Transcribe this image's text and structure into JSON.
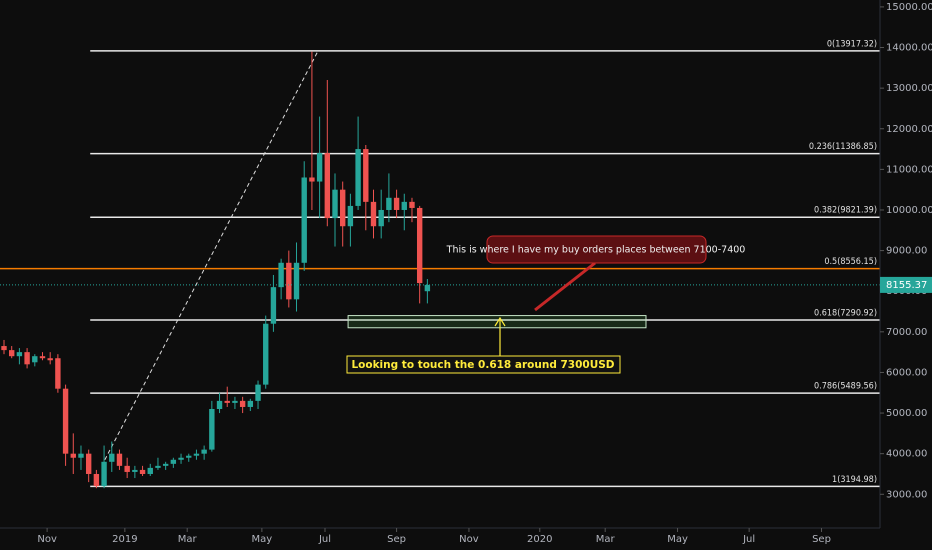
{
  "chart_data": {
    "type": "candlestick",
    "up_color": "#26a69a",
    "down_color": "#ef5350",
    "x": [
      0,
      1,
      2,
      3,
      4,
      5,
      6,
      7,
      8,
      9,
      10,
      11,
      12,
      13,
      14,
      15,
      16,
      17,
      18,
      19,
      20,
      21,
      22,
      23,
      24,
      25,
      26,
      27,
      28,
      29,
      30,
      31,
      32,
      33,
      34,
      35,
      36,
      37,
      38,
      39,
      40,
      41,
      42,
      43,
      44,
      45,
      46,
      47,
      48,
      49,
      50,
      51,
      52,
      53,
      54,
      55
    ],
    "open": [
      6650,
      6550,
      6400,
      6500,
      6250,
      6400,
      6350,
      6350,
      5600,
      4000,
      3900,
      4000,
      3500,
      3200,
      3800,
      4000,
      3700,
      3550,
      3600,
      3500,
      3650,
      3700,
      3750,
      3850,
      3900,
      3950,
      4000,
      4100,
      5100,
      5300,
      5250,
      5300,
      5150,
      5300,
      5700,
      7200,
      8100,
      8700,
      7800,
      8700,
      10800,
      10700,
      11400,
      9800,
      10500,
      9600,
      10100,
      11500,
      10200,
      9600,
      10000,
      10300,
      10000,
      10200,
      10050,
      8000
    ],
    "high": [
      6800,
      6650,
      6600,
      6600,
      6450,
      6500,
      6500,
      6450,
      5700,
      4500,
      4200,
      4100,
      3600,
      4200,
      4300,
      4100,
      3900,
      3700,
      3700,
      3750,
      3900,
      3800,
      3900,
      4000,
      4000,
      4100,
      4200,
      5300,
      5500,
      5650,
      5400,
      5400,
      5350,
      5800,
      7400,
      8400,
      8800,
      9000,
      9200,
      11200,
      13900,
      12300,
      13200,
      10900,
      10700,
      10400,
      12300,
      11600,
      10500,
      10500,
      10900,
      10500,
      10400,
      10300,
      10100,
      8300
    ],
    "low": [
      6450,
      6350,
      6200,
      6100,
      6150,
      6300,
      6200,
      5500,
      3700,
      3500,
      3600,
      3300,
      3150,
      3150,
      3550,
      3600,
      3400,
      3400,
      3450,
      3450,
      3600,
      3600,
      3650,
      3750,
      3800,
      3850,
      3850,
      4050,
      5000,
      5150,
      5100,
      5000,
      5050,
      5100,
      5600,
      7000,
      7800,
      7600,
      7500,
      8500,
      10000,
      9800,
      9600,
      9100,
      9100,
      9100,
      10000,
      9500,
      9300,
      9300,
      9700,
      9800,
      9500,
      9700,
      7700,
      7700
    ],
    "close": [
      6550,
      6400,
      6500,
      6200,
      6400,
      6350,
      6300,
      5600,
      4000,
      3900,
      4000,
      3500,
      3200,
      3800,
      4000,
      3700,
      3550,
      3600,
      3500,
      3650,
      3700,
      3750,
      3850,
      3900,
      3950,
      4000,
      4100,
      5100,
      5300,
      5250,
      5300,
      5150,
      5300,
      5700,
      7200,
      8100,
      8700,
      7800,
      8700,
      10800,
      10700,
      11400,
      9800,
      10500,
      9600,
      10100,
      11500,
      10200,
      9600,
      10000,
      10300,
      10000,
      10200,
      10050,
      8200,
      8155.37
    ],
    "xlim": [
      -0.52,
      113.8
    ],
    "xticks": [
      {
        "value": 5.6,
        "label": "Nov"
      },
      {
        "value": 15.7,
        "label": "2019"
      },
      {
        "value": 23.8,
        "label": "Mar"
      },
      {
        "value": 33.5,
        "label": "May"
      },
      {
        "value": 41.7,
        "label": "Jul"
      },
      {
        "value": 51.0,
        "label": "Sep"
      },
      {
        "value": 60.4,
        "label": "Nov"
      },
      {
        "value": 69.6,
        "label": "2020"
      },
      {
        "value": 78.1,
        "label": "Mar"
      },
      {
        "value": 87.5,
        "label": "May"
      },
      {
        "value": 96.8,
        "label": "Jul"
      },
      {
        "value": 106.2,
        "label": "Sep"
      }
    ],
    "ylim": [
      2170,
      15170
    ],
    "yticks": [
      {
        "value": 3000,
        "label": "3000.00"
      },
      {
        "value": 4000,
        "label": "4000.00"
      },
      {
        "value": 5000,
        "label": "5000.00"
      },
      {
        "value": 6000,
        "label": "6000.00"
      },
      {
        "value": 7000,
        "label": "7000.00"
      },
      {
        "value": 8000,
        "label": "8000.00"
      },
      {
        "value": 9000,
        "label": "9000.00"
      },
      {
        "value": 10000,
        "label": "10000.00"
      },
      {
        "value": 11000,
        "label": "11000.00"
      },
      {
        "value": 12000,
        "label": "12000.00"
      },
      {
        "value": 13000,
        "label": "13000.00"
      },
      {
        "value": 14000,
        "label": "14000.00"
      },
      {
        "value": 15000,
        "label": "15000.00"
      }
    ],
    "fib_levels": [
      {
        "label": "0(13917.32)",
        "value": 13917.32,
        "color": "#e8e8e8"
      },
      {
        "label": "0.236(11386.85)",
        "value": 11386.85,
        "color": "#e8e8e8"
      },
      {
        "label": "0.382(9821.39)",
        "value": 9821.39,
        "color": "#e8e8e8"
      },
      {
        "label": "0.5(8556.15)",
        "value": 8556.15,
        "color": "#f57c00"
      },
      {
        "label": "0.618(7290.92)",
        "value": 7290.92,
        "color": "#e8e8e8"
      },
      {
        "label": "0.786(5489.56)",
        "value": 5489.56,
        "color": "#e8e8e8"
      },
      {
        "label": "1(3194.98)",
        "value": 3194.98,
        "color": "#e8e8e8"
      }
    ],
    "fib_x": [
      11.2,
      113.8
    ],
    "trendline": {
      "x": [
        13.1,
        40.8
      ],
      "y": [
        3850,
        13917.32
      ]
    },
    "buy_zone": {
      "x": [
        44.7,
        83.4
      ],
      "y": [
        7100,
        7400
      ]
    },
    "last_price": 8155.37,
    "annotations": [
      "This is where I have my buy orders places between 7100-7400",
      "Looking to touch the 0.618 around 7300USD"
    ]
  }
}
